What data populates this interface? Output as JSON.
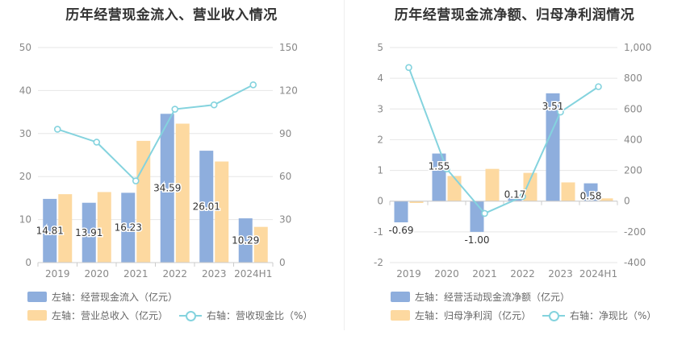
{
  "chart_data": [
    {
      "type": "bar",
      "title": "历年经营现金流入、营业收入情况",
      "categories": [
        "2019",
        "2020",
        "2021",
        "2022",
        "2023",
        "2024H1"
      ],
      "y_left": {
        "ylim": [
          0,
          50
        ],
        "ticks": [
          "0",
          "10",
          "20",
          "30",
          "40",
          "50"
        ]
      },
      "y_right": {
        "ylim": [
          0,
          150
        ],
        "ticks": [
          "0",
          "30",
          "60",
          "90",
          "120",
          "150"
        ]
      },
      "series": [
        {
          "name": "左轴：经营现金流入（亿元）",
          "axis": "left",
          "kind": "bar",
          "color": "#8eaedd",
          "values": [
            14.81,
            13.91,
            16.23,
            34.59,
            26.01,
            10.29
          ],
          "labels": [
            "14.81",
            "13.91",
            "16.23",
            "34.59",
            "26.01",
            "10.29"
          ]
        },
        {
          "name": "左轴：营业总收入（亿元）",
          "axis": "left",
          "kind": "bar",
          "color": "#fdd9a0",
          "values": [
            15.9,
            16.4,
            28.3,
            32.3,
            23.5,
            8.3
          ]
        },
        {
          "name": "右轴：营收现金比（%）",
          "axis": "right",
          "kind": "line",
          "color": "#84d3de",
          "values": [
            93,
            84,
            57,
            107,
            110,
            124
          ]
        }
      ],
      "grid": true,
      "legend": "bottom-left"
    },
    {
      "type": "bar",
      "title": "历年经营现金流净额、归母净利润情况",
      "categories": [
        "2019",
        "2020",
        "2021",
        "2022",
        "2023",
        "2024H1"
      ],
      "y_left": {
        "ylim": [
          -2,
          5
        ],
        "ticks": [
          "-2",
          "-1",
          "0",
          "1",
          "2",
          "3",
          "4",
          "5"
        ]
      },
      "y_right": {
        "ylim": [
          -400,
          1000
        ],
        "ticks": [
          "-400",
          "-200",
          "0",
          "200",
          "400",
          "600",
          "800",
          "1,000"
        ]
      },
      "series": [
        {
          "name": "左轴：经营活动现金流净额（亿元）",
          "axis": "left",
          "kind": "bar",
          "color": "#8eaedd",
          "values": [
            -0.69,
            1.55,
            -1.0,
            0.17,
            3.51,
            0.58
          ],
          "labels": [
            "-0.69",
            "1.55",
            "-1.00",
            "0.17",
            "3.51",
            "0.58"
          ]
        },
        {
          "name": "左轴：归母净利润（亿元）",
          "axis": "left",
          "kind": "bar",
          "color": "#fdd9a0",
          "values": [
            -0.06,
            0.82,
            1.05,
            0.92,
            0.61,
            0.09
          ]
        },
        {
          "name": "右轴：净现比（%）",
          "axis": "right",
          "kind": "line",
          "color": "#84d3de",
          "values": [
            870,
            210,
            -80,
            30,
            580,
            745
          ]
        }
      ],
      "grid": true,
      "legend": "bottom-left"
    }
  ]
}
